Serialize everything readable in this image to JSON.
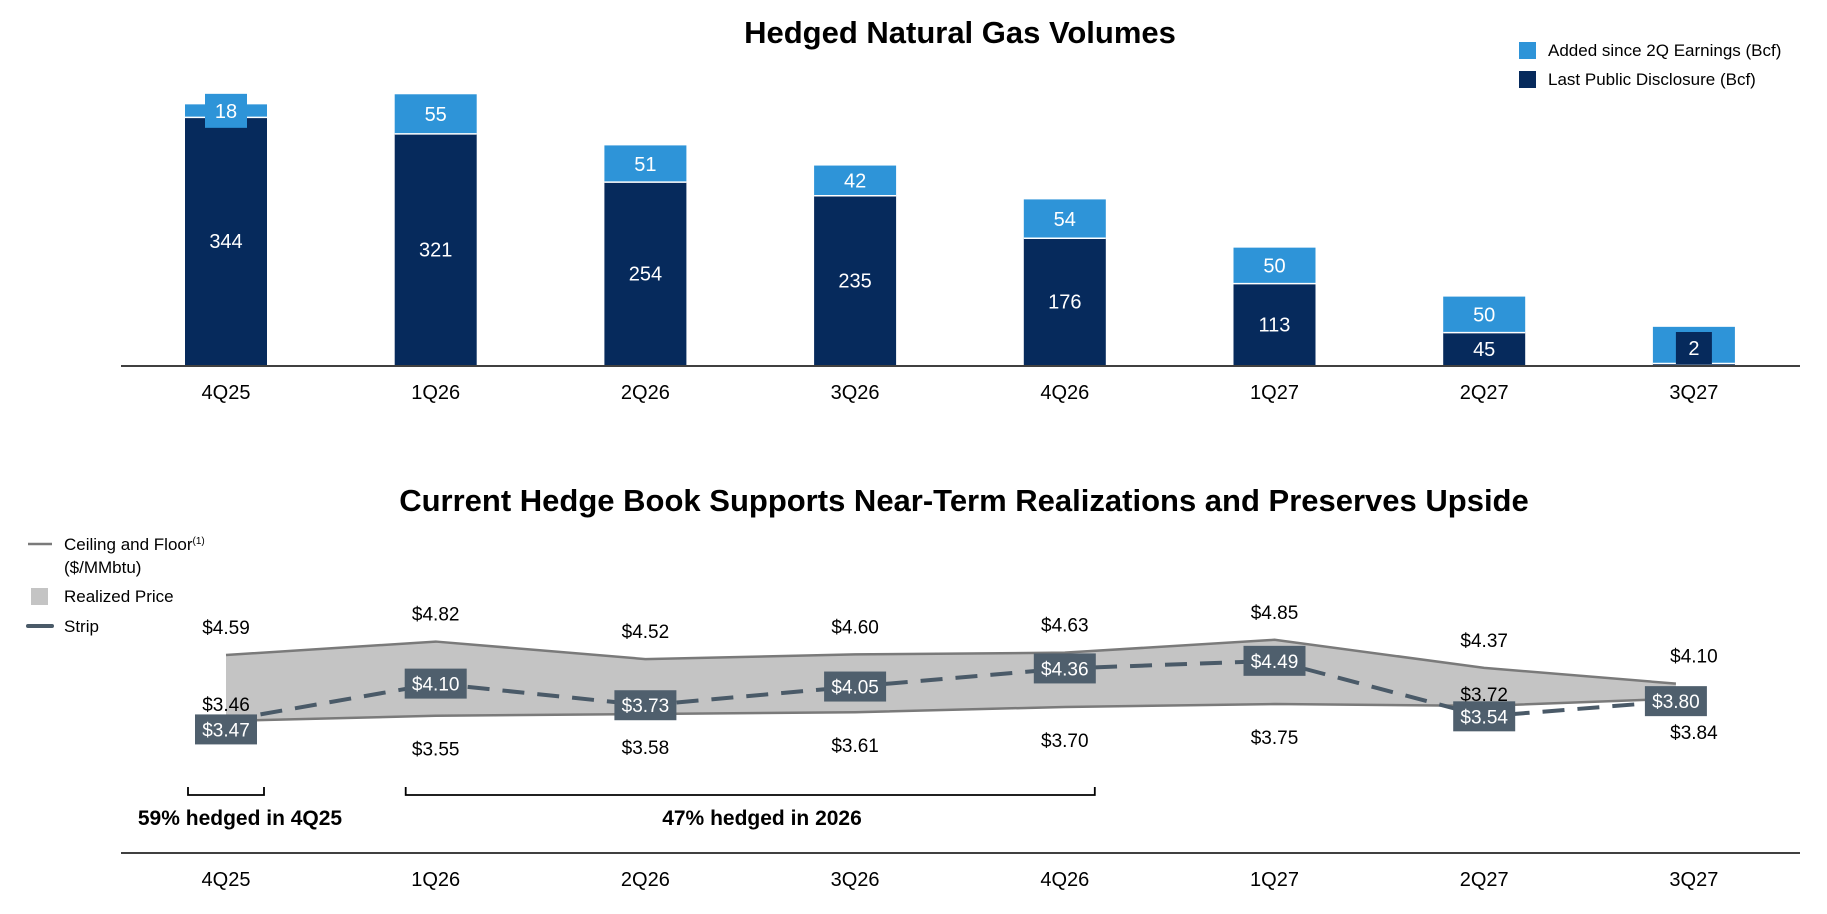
{
  "colors": {
    "added": "#2e94d8",
    "last": "#062a5c",
    "band": "#c4c4c4",
    "line": "#7a7a7a",
    "strip": "#4a5a68",
    "strip_box": "#4f5f6d",
    "axis": "#000000"
  },
  "chart_data": [
    {
      "type": "bar",
      "stacked": true,
      "title": "Hedged Natural Gas Volumes",
      "categories": [
        "4Q25",
        "1Q26",
        "2Q26",
        "3Q26",
        "4Q26",
        "1Q27",
        "2Q27",
        "3Q27"
      ],
      "series": [
        {
          "name": "Last Public Disclosure (Bcf)",
          "values": [
            344,
            321,
            254,
            235,
            176,
            113,
            45,
            2
          ]
        },
        {
          "name": "Added since 2Q Earnings (Bcf)",
          "values": [
            18,
            55,
            51,
            42,
            54,
            50,
            50,
            51
          ]
        }
      ],
      "ylim": [
        0,
        380
      ],
      "legend": "top-right"
    },
    {
      "type": "area",
      "title": "Current Hedge Book Supports Near-Term Realizations and Preserves Upside",
      "categories": [
        "4Q25",
        "1Q26",
        "2Q26",
        "3Q26",
        "4Q26",
        "1Q27",
        "2Q27",
        "3Q27"
      ],
      "legend_title": "Ceiling and Floor",
      "legend_title_sup": "(1)",
      "legend_subtitle": "($/MMbtu)",
      "legend": [
        "Realized Price",
        "Strip"
      ],
      "ceiling": [
        4.59,
        4.82,
        4.52,
        4.6,
        4.63,
        4.85,
        4.37,
        4.1
      ],
      "floor": [
        3.46,
        3.55,
        3.58,
        3.61,
        3.7,
        3.75,
        3.72,
        3.84
      ],
      "strip": [
        3.47,
        4.1,
        3.73,
        4.05,
        4.36,
        4.49,
        3.54,
        3.8
      ],
      "ceiling_labels": [
        "$4.59",
        "$4.82",
        "$4.52",
        "$4.60",
        "$4.63",
        "$4.85",
        "$4.37",
        "$4.10"
      ],
      "floor_labels": [
        "$3.46",
        "$3.55",
        "$3.58",
        "$3.61",
        "$3.70",
        "$3.75",
        "$3.72",
        "$3.84"
      ],
      "strip_labels": [
        "$3.47",
        "$4.10",
        "$3.73",
        "$4.05",
        "$4.36",
        "$4.49",
        "$3.54",
        "$3.80"
      ],
      "ylim": [
        3.0,
        5.2
      ],
      "annotations": [
        {
          "text": "59% hedged in 4Q25",
          "span": [
            "4Q25",
            "4Q25"
          ]
        },
        {
          "text": "47% hedged in 2026",
          "span": [
            "1Q26",
            "4Q26"
          ]
        }
      ]
    }
  ]
}
